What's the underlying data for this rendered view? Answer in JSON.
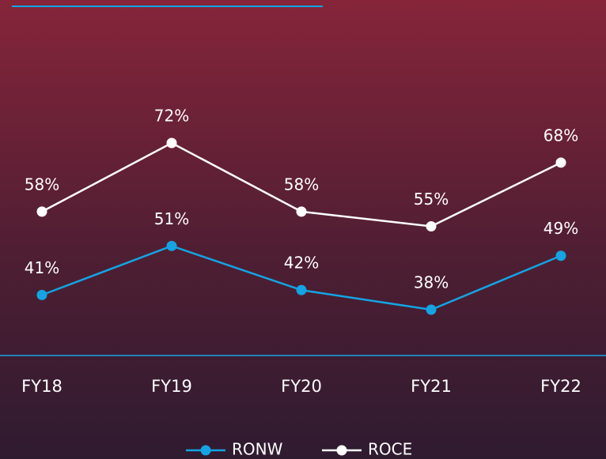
{
  "chart_data": {
    "type": "line",
    "categories": [
      "FY18",
      "FY19",
      "FY20",
      "FY21",
      "FY22"
    ],
    "series": [
      {
        "name": "RONW",
        "color": "#14a4e3",
        "values": [
          41,
          51,
          42,
          38,
          49
        ],
        "value_labels": [
          "41%",
          "51%",
          "42%",
          "38%",
          "49%"
        ]
      },
      {
        "name": "ROCE",
        "color": "#ffffff",
        "values": [
          58,
          72,
          58,
          55,
          68
        ],
        "value_labels": [
          "58%",
          "72%",
          "58%",
          "55%",
          "68%"
        ]
      }
    ]
  }
}
